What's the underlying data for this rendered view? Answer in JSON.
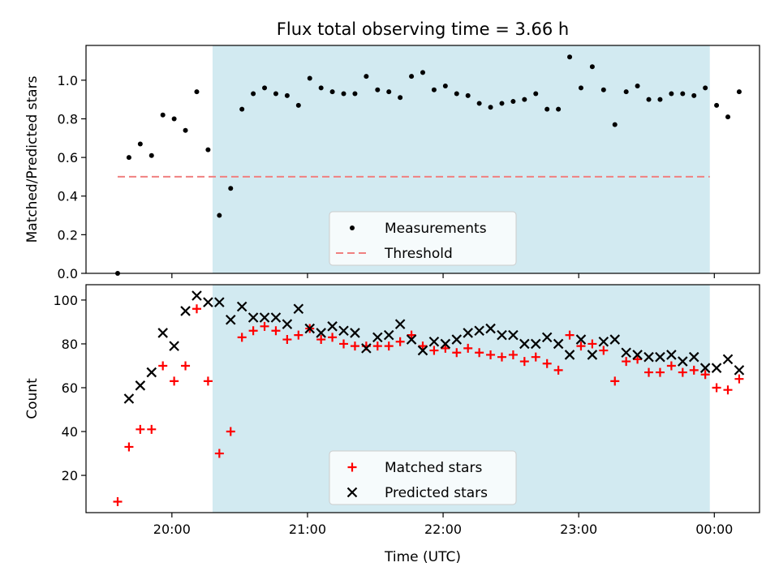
{
  "chart_data": {
    "title": "Flux total observing time = 3.66 h",
    "type": "scatter",
    "shared_x": {
      "label": "Time (UTC)",
      "ticks": [
        "20:00",
        "21:00",
        "22:00",
        "23:00",
        "00:00"
      ],
      "range": [
        "19:22",
        "00:20"
      ]
    },
    "highlight_interval": {
      "start": "20:18",
      "end": "23:58",
      "color": "#add8e6"
    },
    "panels": [
      {
        "ylabel": "Matched/Predicted stars",
        "ylim": [
          0,
          1.18
        ],
        "yticks": [
          "0.0",
          "0.2",
          "0.4",
          "0.6",
          "0.8",
          "1.0"
        ],
        "ytick_values": [
          0,
          0.2,
          0.4,
          0.6,
          0.8,
          1.0
        ],
        "legend": {
          "placement": "lower-center",
          "entries": [
            "Measurements",
            "Threshold"
          ]
        },
        "threshold": {
          "name": "Threshold",
          "value": 0.5,
          "x_start": "19:36",
          "x_end": "23:58",
          "color": "#f08080",
          "style": "dashed"
        },
        "series": [
          {
            "name": "Measurements",
            "marker": "dot",
            "color": "#000000",
            "points": [
              [
                "19:36",
                0.0
              ],
              [
                "19:41",
                0.6
              ],
              [
                "19:46",
                0.67
              ],
              [
                "19:51",
                0.61
              ],
              [
                "19:56",
                0.82
              ],
              [
                "20:01",
                0.8
              ],
              [
                "20:06",
                0.74
              ],
              [
                "20:11",
                0.94
              ],
              [
                "20:16",
                0.64
              ],
              [
                "20:21",
                0.3
              ],
              [
                "20:26",
                0.44
              ],
              [
                "20:31",
                0.85
              ],
              [
                "20:36",
                0.93
              ],
              [
                "20:41",
                0.96
              ],
              [
                "20:46",
                0.93
              ],
              [
                "20:51",
                0.92
              ],
              [
                "20:56",
                0.87
              ],
              [
                "21:01",
                1.01
              ],
              [
                "21:06",
                0.96
              ],
              [
                "21:11",
                0.94
              ],
              [
                "21:16",
                0.93
              ],
              [
                "21:21",
                0.93
              ],
              [
                "21:26",
                1.02
              ],
              [
                "21:31",
                0.95
              ],
              [
                "21:36",
                0.94
              ],
              [
                "21:41",
                0.91
              ],
              [
                "21:46",
                1.02
              ],
              [
                "21:51",
                1.04
              ],
              [
                "21:56",
                0.95
              ],
              [
                "22:01",
                0.97
              ],
              [
                "22:06",
                0.93
              ],
              [
                "22:11",
                0.92
              ],
              [
                "22:16",
                0.88
              ],
              [
                "22:21",
                0.86
              ],
              [
                "22:26",
                0.88
              ],
              [
                "22:31",
                0.89
              ],
              [
                "22:36",
                0.9
              ],
              [
                "22:41",
                0.93
              ],
              [
                "22:46",
                0.85
              ],
              [
                "22:51",
                0.85
              ],
              [
                "22:56",
                1.12
              ],
              [
                "23:01",
                0.96
              ],
              [
                "23:06",
                1.07
              ],
              [
                "23:11",
                0.95
              ],
              [
                "23:16",
                0.77
              ],
              [
                "23:21",
                0.94
              ],
              [
                "23:26",
                0.97
              ],
              [
                "23:31",
                0.9
              ],
              [
                "23:36",
                0.9
              ],
              [
                "23:41",
                0.93
              ],
              [
                "23:46",
                0.93
              ],
              [
                "23:51",
                0.92
              ],
              [
                "23:56",
                0.96
              ],
              [
                "00:01",
                0.87
              ],
              [
                "00:06",
                0.81
              ],
              [
                "00:11",
                0.94
              ]
            ]
          }
        ]
      },
      {
        "ylabel": "Count",
        "ylim": [
          3,
          107
        ],
        "yticks": [
          "20",
          "40",
          "60",
          "80",
          "100"
        ],
        "ytick_values": [
          20,
          40,
          60,
          80,
          100
        ],
        "legend": {
          "placement": "lower-center",
          "entries": [
            "Matched stars",
            "Predicted stars"
          ]
        },
        "series": [
          {
            "name": "Matched stars",
            "marker": "plus",
            "color": "#ff0000",
            "points": [
              [
                "19:36",
                8
              ],
              [
                "19:41",
                33
              ],
              [
                "19:46",
                41
              ],
              [
                "19:51",
                41
              ],
              [
                "19:56",
                70
              ],
              [
                "20:01",
                63
              ],
              [
                "20:06",
                70
              ],
              [
                "20:11",
                96
              ],
              [
                "20:16",
                63
              ],
              [
                "20:21",
                30
              ],
              [
                "20:26",
                40
              ],
              [
                "20:31",
                83
              ],
              [
                "20:36",
                86
              ],
              [
                "20:41",
                88
              ],
              [
                "20:46",
                86
              ],
              [
                "20:51",
                82
              ],
              [
                "20:56",
                84
              ],
              [
                "21:01",
                87
              ],
              [
                "21:06",
                82
              ],
              [
                "21:11",
                83
              ],
              [
                "21:16",
                80
              ],
              [
                "21:21",
                79
              ],
              [
                "21:26",
                79
              ],
              [
                "21:31",
                79
              ],
              [
                "21:36",
                79
              ],
              [
                "21:41",
                81
              ],
              [
                "21:46",
                84
              ],
              [
                "21:51",
                79
              ],
              [
                "21:56",
                77
              ],
              [
                "22:01",
                78
              ],
              [
                "22:06",
                76
              ],
              [
                "22:11",
                78
              ],
              [
                "22:16",
                76
              ],
              [
                "22:21",
                75
              ],
              [
                "22:26",
                74
              ],
              [
                "22:31",
                75
              ],
              [
                "22:36",
                72
              ],
              [
                "22:41",
                74
              ],
              [
                "22:46",
                71
              ],
              [
                "22:51",
                68
              ],
              [
                "22:56",
                84
              ],
              [
                "23:01",
                79
              ],
              [
                "23:06",
                80
              ],
              [
                "23:11",
                77
              ],
              [
                "23:16",
                63
              ],
              [
                "23:21",
                72
              ],
              [
                "23:26",
                73
              ],
              [
                "23:31",
                67
              ],
              [
                "23:36",
                67
              ],
              [
                "23:41",
                70
              ],
              [
                "23:46",
                67
              ],
              [
                "23:51",
                68
              ],
              [
                "23:56",
                66
              ],
              [
                "00:01",
                60
              ],
              [
                "00:06",
                59
              ],
              [
                "00:11",
                64
              ]
            ]
          },
          {
            "name": "Predicted stars",
            "marker": "x",
            "color": "#000000",
            "points": [
              [
                "19:41",
                55
              ],
              [
                "19:46",
                61
              ],
              [
                "19:51",
                67
              ],
              [
                "19:56",
                85
              ],
              [
                "20:01",
                79
              ],
              [
                "20:06",
                95
              ],
              [
                "20:11",
                102
              ],
              [
                "20:16",
                99
              ],
              [
                "20:21",
                99
              ],
              [
                "20:26",
                91
              ],
              [
                "20:31",
                97
              ],
              [
                "20:36",
                92
              ],
              [
                "20:41",
                92
              ],
              [
                "20:46",
                92
              ],
              [
                "20:51",
                89
              ],
              [
                "20:56",
                96
              ],
              [
                "21:01",
                87
              ],
              [
                "21:06",
                85
              ],
              [
                "21:11",
                88
              ],
              [
                "21:16",
                86
              ],
              [
                "21:21",
                85
              ],
              [
                "21:26",
                78
              ],
              [
                "21:31",
                83
              ],
              [
                "21:36",
                84
              ],
              [
                "21:41",
                89
              ],
              [
                "21:46",
                82
              ],
              [
                "21:51",
                77
              ],
              [
                "21:56",
                81
              ],
              [
                "22:01",
                80
              ],
              [
                "22:06",
                82
              ],
              [
                "22:11",
                85
              ],
              [
                "22:16",
                86
              ],
              [
                "22:21",
                87
              ],
              [
                "22:26",
                84
              ],
              [
                "22:31",
                84
              ],
              [
                "22:36",
                80
              ],
              [
                "22:41",
                80
              ],
              [
                "22:46",
                83
              ],
              [
                "22:51",
                80
              ],
              [
                "22:56",
                75
              ],
              [
                "23:01",
                82
              ],
              [
                "23:06",
                75
              ],
              [
                "23:11",
                81
              ],
              [
                "23:16",
                82
              ],
              [
                "23:21",
                76
              ],
              [
                "23:26",
                75
              ],
              [
                "23:31",
                74
              ],
              [
                "23:36",
                74
              ],
              [
                "23:41",
                75
              ],
              [
                "23:46",
                72
              ],
              [
                "23:51",
                74
              ],
              [
                "23:56",
                69
              ],
              [
                "00:01",
                69
              ],
              [
                "00:06",
                73
              ],
              [
                "00:11",
                68
              ]
            ]
          }
        ]
      }
    ]
  }
}
